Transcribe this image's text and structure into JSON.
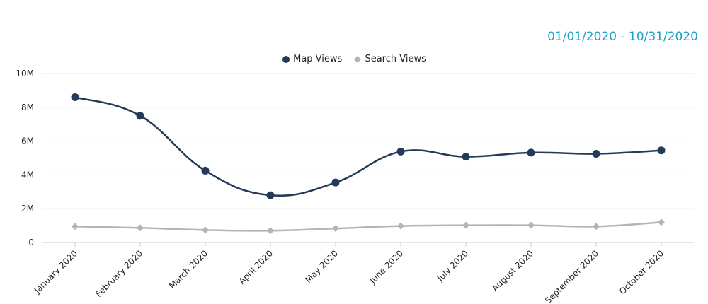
{
  "header": {
    "date_range": "01/01/2020 - 10/31/2020"
  },
  "colors": {
    "map_views": "#243a5a",
    "search_views": "#b3b3bd",
    "date_range": "#1aa0c8",
    "grid": "#e6e6e6"
  },
  "chart_data": {
    "type": "line",
    "categories": [
      "January 2020",
      "February 2020",
      "March 2020",
      "April 2020",
      "May 2020",
      "June 2020",
      "July 2020",
      "August 2020",
      "September 2020",
      "October 2020"
    ],
    "series": [
      {
        "name": "Map Views",
        "marker": "circle",
        "values": [
          8600000,
          7500000,
          4250000,
          2800000,
          3550000,
          5380000,
          5080000,
          5320000,
          5250000,
          5450000
        ]
      },
      {
        "name": "Search Views",
        "marker": "diamond",
        "values": [
          950000,
          870000,
          740000,
          700000,
          830000,
          980000,
          1020000,
          1020000,
          950000,
          1200000
        ]
      }
    ],
    "yticks": [
      "0",
      "2M",
      "4M",
      "6M",
      "8M",
      "10M"
    ],
    "ylim": [
      0,
      10000000
    ],
    "grid": true,
    "legend": "top-center"
  }
}
